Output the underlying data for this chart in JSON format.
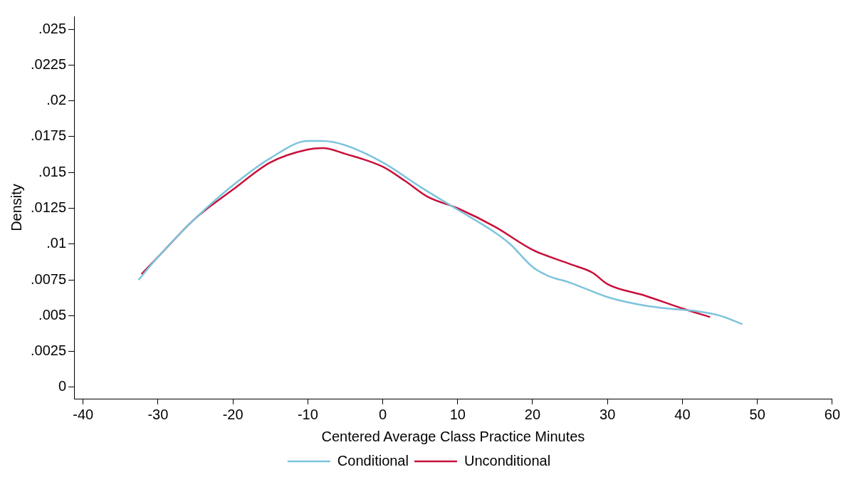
{
  "chart_data": {
    "type": "line",
    "xlabel": "Centered Average Class Practice Minutes",
    "ylabel": "Density",
    "xlim": [
      -41.2,
      60
    ],
    "xticks": [
      -40,
      -30,
      -20,
      -10,
      0,
      10,
      20,
      30,
      40,
      50,
      60
    ],
    "ylim": [
      -0.0008,
      0.0259
    ],
    "yticks": [
      0,
      {
        "value": 0.0025,
        "label": ".0025"
      },
      {
        "value": 0.005,
        "label": ".005"
      },
      {
        "value": 0.0075,
        "label": ".0075"
      },
      {
        "value": 0.01,
        "label": ".01"
      },
      {
        "value": 0.0125,
        "label": ".0125"
      },
      {
        "value": 0.015,
        "label": ".015"
      },
      {
        "value": 0.0175,
        "label": ".0175"
      },
      {
        "value": 0.02,
        "label": ".02"
      },
      {
        "value": 0.0225,
        "label": ".0225"
      },
      {
        "value": 0.025,
        "label": ".025"
      }
    ],
    "grid": false,
    "legend": "bottom",
    "marker": "none",
    "line_style": "solid",
    "series": [
      {
        "name": "Conditional",
        "color": "#7dc4dc",
        "x": [
          -32.6,
          -30,
          -25,
          -20,
          -15,
          -10,
          -8,
          -5,
          0,
          5,
          10,
          15,
          17,
          20,
          22,
          25,
          30,
          35,
          38,
          42,
          45,
          48
        ],
        "values": [
          0.0075,
          0.0091,
          0.0118,
          0.0141,
          0.016,
          0.0172,
          0.0172,
          0.0169,
          0.0157,
          0.014,
          0.0124,
          0.0108,
          0.01,
          0.0084,
          0.0078,
          0.0073,
          0.0063,
          0.0057,
          0.0055,
          0.0053,
          0.005,
          0.0044
        ]
      },
      {
        "name": "Unconditional",
        "color": "#c8103a",
        "x": [
          -32.2,
          -30,
          -25,
          -20,
          -15,
          -10,
          -8,
          -5,
          0,
          3,
          6,
          10,
          15,
          20,
          25,
          28,
          30,
          35,
          40,
          43.7
        ],
        "values": [
          0.0079,
          0.0091,
          0.0118,
          0.0138,
          0.0157,
          0.0166,
          0.0167,
          0.0163,
          0.0154,
          0.0144,
          0.0133,
          0.0125,
          0.0112,
          0.0096,
          0.0086,
          0.008,
          0.0072,
          0.0064,
          0.0055,
          0.0049
        ]
      }
    ]
  }
}
